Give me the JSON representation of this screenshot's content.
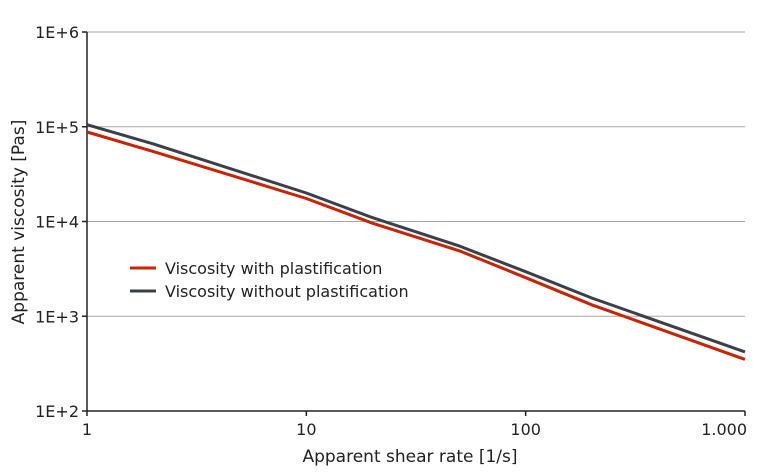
{
  "chart_data": {
    "type": "line",
    "xlabel": "Apparent shear rate [1/s]",
    "ylabel": "Apparent viscosity [Pas]",
    "x_scale": "log",
    "y_scale": "log",
    "xlim": [
      1,
      1000
    ],
    "ylim": [
      100,
      1000000
    ],
    "x_ticks": [
      {
        "value": 1,
        "label": "1"
      },
      {
        "value": 10,
        "label": "10"
      },
      {
        "value": 100,
        "label": "100"
      },
      {
        "value": 1000,
        "label": "1.000"
      }
    ],
    "y_ticks": [
      {
        "value": 100,
        "label": "1E+2"
      },
      {
        "value": 1000,
        "label": "1E+3"
      },
      {
        "value": 10000,
        "label": "1E+4"
      },
      {
        "value": 100000,
        "label": "1E+5"
      },
      {
        "value": 1000000,
        "label": "1E+6"
      }
    ],
    "grid": "horizontal",
    "legend_position": "center-left",
    "series": [
      {
        "name": "Viscosity with plastification",
        "color": "#cc2200",
        "points": [
          [
            1,
            88000
          ],
          [
            2,
            55000
          ],
          [
            10,
            17500
          ],
          [
            20,
            9600
          ],
          [
            50,
            4900
          ],
          [
            100,
            2550
          ],
          [
            200,
            1320
          ],
          [
            1000,
            350
          ]
        ]
      },
      {
        "name": "Viscosity without plastification",
        "color": "#3a3f4a",
        "points": [
          [
            1,
            105000
          ],
          [
            2,
            66000
          ],
          [
            10,
            20000
          ],
          [
            20,
            11000
          ],
          [
            50,
            5500
          ],
          [
            100,
            2950
          ],
          [
            200,
            1560
          ],
          [
            1000,
            420
          ]
        ]
      }
    ]
  }
}
